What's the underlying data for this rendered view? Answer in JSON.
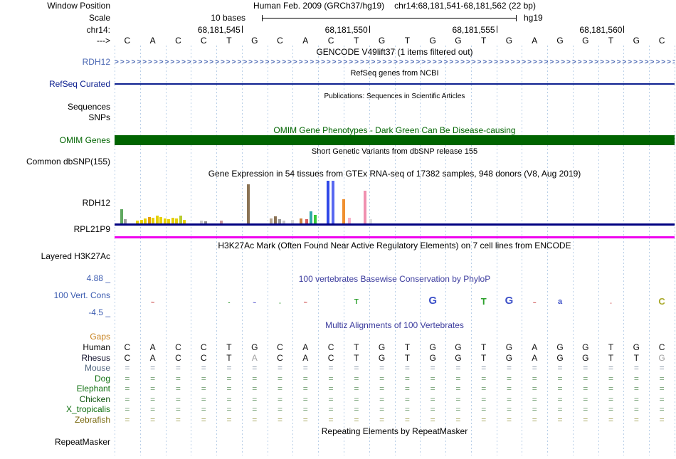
{
  "header": {
    "title_left": "Human Feb. 2009 (GRCh37/hg19)",
    "title_right": "chr14:68,181,541-68,181,562 (22 bp)",
    "scale_text": "10 bases",
    "assembly": "hg19"
  },
  "left_labels": {
    "window_position": "Window Position",
    "scale": "Scale",
    "chrom": "chr14:",
    "strand": "--->",
    "gencode_gene": "RDH12",
    "refseq": "RefSeq Curated",
    "sequences": "Sequences",
    "snps": "SNPs",
    "omim": "OMIM Genes",
    "dbsnp": "Common dbSNP(155)",
    "gtex_gene1": "RDH12",
    "gtex_gene2": "RPL21P9",
    "h3k27ac": "Layered H3K27Ac",
    "cons_max": "4.88 _",
    "cons": "100 Vert. Cons",
    "cons_min": "-4.5 _",
    "gaps": "Gaps",
    "repeatmasker": "RepeatMasker"
  },
  "titles": {
    "gencode": "GENCODE V49lift37 (1 items filtered out)",
    "refseq": "RefSeq genes from NCBI",
    "publications": "Publications: Sequences in Scientific Articles",
    "omim": "OMIM Gene Phenotypes - Dark Green Can Be Disease-causing",
    "dbsnp": "Short Genetic Variants from dbSNP release 155",
    "gtex": "Gene Expression in 54 tissues from GTEx RNA-seq of 17382 samples, 948 donors (V8, Aug 2019)",
    "h3k27ac": "H3K27Ac Mark (Often Found Near Active Regulatory Elements) on 7 cell lines from ENCODE",
    "phylop": "100 vertebrates Basewise Conservation by PhyloP",
    "multiz": "Multiz Alignments of 100 Vertebrates",
    "repeatmasker": "Repeating Elements by RepeatMasker"
  },
  "ruler": {
    "ticks": [
      {
        "label": "68,181,545",
        "base_index": 4
      },
      {
        "label": "68,181,550",
        "base_index": 9
      },
      {
        "label": "68,181,555",
        "base_index": 14
      },
      {
        "label": "68,181,560",
        "base_index": 19
      }
    ]
  },
  "sequence": "CACCTGCACTGTGGTGAGGTGC",
  "tracks": {
    "gtex": {
      "bars": [
        [
          8,
          20,
          "#60a860"
        ],
        [
          13,
          6,
          "#a0a0a0"
        ],
        [
          30,
          4,
          "#e6d000"
        ],
        [
          36,
          5,
          "#e6d000"
        ],
        [
          41,
          7,
          "#e6d000"
        ],
        [
          47,
          9,
          "#e6a000"
        ],
        [
          52,
          8,
          "#e6d000"
        ],
        [
          58,
          11,
          "#e6d000"
        ],
        [
          63,
          9,
          "#e6d000"
        ],
        [
          69,
          7,
          "#e6d000"
        ],
        [
          74,
          6,
          "#e6d000"
        ],
        [
          80,
          8,
          "#e6d000"
        ],
        [
          85,
          7,
          "#e6d000"
        ],
        [
          91,
          11,
          "#b8cc30"
        ],
        [
          96,
          5,
          "#e6d000"
        ],
        [
          120,
          4,
          "#c8c8c8"
        ],
        [
          126,
          3,
          "#909090"
        ],
        [
          148,
          4,
          "#cc9696"
        ],
        [
          186,
          55,
          "#8b7355"
        ],
        [
          218,
          7,
          "#b8a890"
        ],
        [
          224,
          10,
          "#8b7355"
        ],
        [
          230,
          6,
          "#989898"
        ],
        [
          236,
          4,
          "#c8c8c8"
        ],
        [
          248,
          5,
          "#d8d8d8"
        ],
        [
          260,
          7,
          "#cc8440"
        ],
        [
          268,
          6,
          "#d86060"
        ],
        [
          274,
          17,
          "#30a8a8"
        ],
        [
          280,
          12,
          "#38c838"
        ],
        [
          298,
          60,
          "#3048e8"
        ],
        [
          305,
          60,
          "#5868f0"
        ],
        [
          320,
          34,
          "#f09030"
        ],
        [
          328,
          8,
          "#f8b0c8"
        ],
        [
          350,
          46,
          "#f090b0"
        ],
        [
          358,
          6,
          "#e0e0e0"
        ]
      ]
    },
    "phylop": {
      "marks": [
        [
          1,
          "~",
          "#c83c3c",
          9
        ],
        [
          4,
          "-",
          "#3ca03c",
          9
        ],
        [
          5,
          "~",
          "#4646c8",
          8
        ],
        [
          6,
          "-",
          "#3ca03c",
          8
        ],
        [
          7,
          "~",
          "#c83c3c",
          9
        ],
        [
          9,
          "T",
          "#2ca02c",
          10
        ],
        [
          12,
          "G",
          "#3c50c8",
          15
        ],
        [
          14,
          "T",
          "#2ca02c",
          13
        ],
        [
          15,
          "G",
          "#3c50c8",
          15
        ],
        [
          16,
          "~",
          "#c83c3c",
          8
        ],
        [
          17,
          "a",
          "#3c50c8",
          11
        ],
        [
          19,
          "-",
          "#c83c3c",
          7
        ],
        [
          21,
          "C",
          "#a8a828",
          13
        ]
      ]
    }
  },
  "alignment": {
    "rows": [
      {
        "name": "Human",
        "label_color": "#000000",
        "type": "seq",
        "seq": "CACCTGCACTGTGGTGAGGTGC",
        "dim": []
      },
      {
        "name": "Rhesus",
        "label_color": "#14142e",
        "type": "seq",
        "seq": "CACCTACACTGTGGTGAGGTTG",
        "dim": [
          5,
          21
        ]
      },
      {
        "name": "Mouse",
        "label_color": "#546880",
        "type": "eq",
        "eq_color": "#8494a4"
      },
      {
        "name": "Dog",
        "label_color": "#0f700f",
        "type": "eq",
        "eq_color": "#7aa47a"
      },
      {
        "name": "Elephant",
        "label_color": "#0f700f",
        "type": "eq",
        "eq_color": "#7aa47a"
      },
      {
        "name": "Chicken",
        "label_color": "#0a520a",
        "type": "eq",
        "eq_color": "#7aa47a"
      },
      {
        "name": "X_tropicalis",
        "label_color": "#0f700f",
        "type": "eq",
        "eq_color": "#7aa47a"
      },
      {
        "name": "Zebrafish",
        "label_color": "#7a6a10",
        "type": "eq",
        "eq_color": "#a4a45a"
      }
    ]
  },
  "colors": {
    "gencode_blue": "#4a67b3",
    "refseq_navy": "#0c1f8f",
    "omim_green": "#006400",
    "gtex_rdh12_line": "#000080",
    "gtex_rpl21p9_line": "#ee00ee",
    "phylop_label_blue": "#3b5bb0",
    "conservation_title_blue": "#3c3c9e",
    "gaps_orange": "#c8821e",
    "gridline_blue": "#b9cfe7"
  }
}
